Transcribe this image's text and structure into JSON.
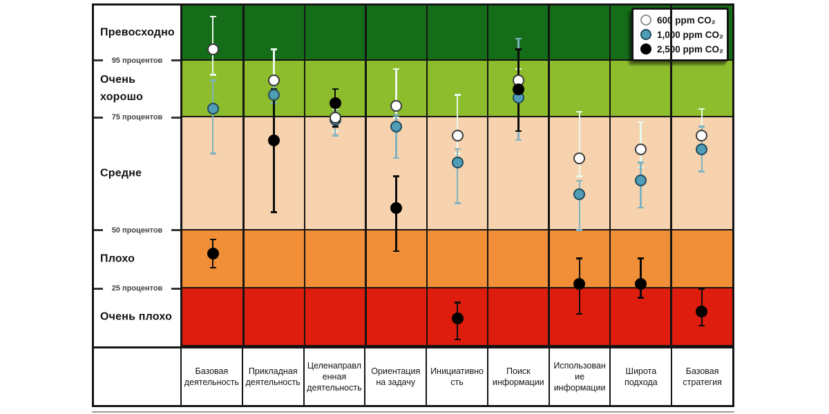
{
  "figure": {
    "legend": {
      "items": [
        {
          "label": "600 ppm CO₂"
        },
        {
          "label": "1,000 ppm CO₂"
        },
        {
          "label": "2,500 ppm CO₂"
        }
      ]
    },
    "y_axis": {
      "bands": [
        {
          "label": "Превосходно",
          "color": "#156d19",
          "range_pct": [
            95,
            100
          ]
        },
        {
          "label": "Очень хорошо",
          "color": "#8dbc2c",
          "range_pct": [
            75,
            95
          ]
        },
        {
          "label": "Средне",
          "color": "#f6d3ae",
          "range_pct": [
            50,
            75
          ]
        },
        {
          "label": "Плохо",
          "color": "#f08f37",
          "range_pct": [
            25,
            50
          ]
        },
        {
          "label": "Очень плохо",
          "color": "#de1d0e",
          "range_pct": [
            0,
            25
          ]
        }
      ],
      "ticks": [
        {
          "label": "95 процентов",
          "pct": 95
        },
        {
          "label": "75 процентов",
          "pct": 75
        },
        {
          "label": "50 процентов",
          "pct": 50
        },
        {
          "label": "25 процентов",
          "pct": 25
        }
      ]
    }
  },
  "chart_data": {
    "type": "scatter",
    "description": "Показатели (процентили) по видам деятельности при разных концентрациях CO₂; точки с диапазонами ошибок на цветных зонах качества",
    "y_unit": "процентиль",
    "y_scale_anchors_pct": [
      100,
      95,
      75,
      50,
      25,
      0
    ],
    "categories": [
      "Базовая\nдеятельность",
      "Прикладная\nдеятельность",
      "Целенаправл\nенная\nдеятельность",
      "Ориентация\nна задачу",
      "Инициативно\nсть",
      "Поиск\nинформации",
      "Использован\nие\nинформации",
      "Широта\nподхода",
      "Базовая\nстратегия"
    ],
    "series": [
      {
        "name": "600 ppm CO₂",
        "marker_fill": "#ffffff",
        "marker_border": "#3a3a3a",
        "bar_color": "#e9f8ec",
        "points": [
          {
            "val": 96,
            "hi": 99,
            "lo": 90
          },
          {
            "val": 88,
            "hi": 96,
            "lo": 84
          },
          {
            "val": 75,
            "hi": 78,
            "lo": 72
          },
          {
            "val": 79,
            "hi": 92,
            "lo": 75
          },
          {
            "val": 71,
            "hi": 83,
            "lo": 67
          },
          {
            "val": 88,
            "hi": 92,
            "lo": 85
          },
          {
            "val": 66,
            "hi": 77,
            "lo": 62
          },
          {
            "val": 68,
            "hi": 74,
            "lo": 64
          },
          {
            "val": 71,
            "hi": 78,
            "lo": 67
          }
        ]
      },
      {
        "name": "1,000 ppm CO₂",
        "marker_fill": "#4f9db6",
        "marker_border": "#1f4a5c",
        "bar_color": "#7fb2c1",
        "points": [
          {
            "val": 78,
            "hi": 88,
            "lo": 67
          },
          {
            "val": 83,
            "hi": 87,
            "lo": 80
          },
          {
            "val": 74.5,
            "hi": 77,
            "lo": 71
          },
          {
            "val": 73,
            "hi": 76,
            "lo": 66
          },
          {
            "val": 65,
            "hi": 68,
            "lo": 56
          },
          {
            "val": 82,
            "hi": 97,
            "lo": 70
          },
          {
            "val": 58,
            "hi": 61,
            "lo": 50
          },
          {
            "val": 61,
            "hi": 65,
            "lo": 55
          },
          {
            "val": 68,
            "hi": 73,
            "lo": 63
          }
        ]
      },
      {
        "name": "2,500 ppm CO₂",
        "marker_fill": "#000000",
        "marker_border": "#000000",
        "bar_color": "#0b0b0b",
        "points": [
          {
            "val": 40,
            "hi": 46,
            "lo": 34
          },
          {
            "val": 70,
            "hi": 85,
            "lo": 54
          },
          {
            "val": 80,
            "hi": 85,
            "lo": 73
          },
          {
            "val": 55,
            "hi": 62,
            "lo": 41
          },
          {
            "val": 12,
            "hi": 19,
            "lo": 3
          },
          {
            "val": 85,
            "hi": 96,
            "lo": 72
          },
          {
            "val": 27,
            "hi": 38,
            "lo": 14
          },
          {
            "val": 27,
            "hi": 38,
            "lo": 21
          },
          {
            "val": 15,
            "hi": 25,
            "lo": 9
          }
        ]
      }
    ]
  }
}
